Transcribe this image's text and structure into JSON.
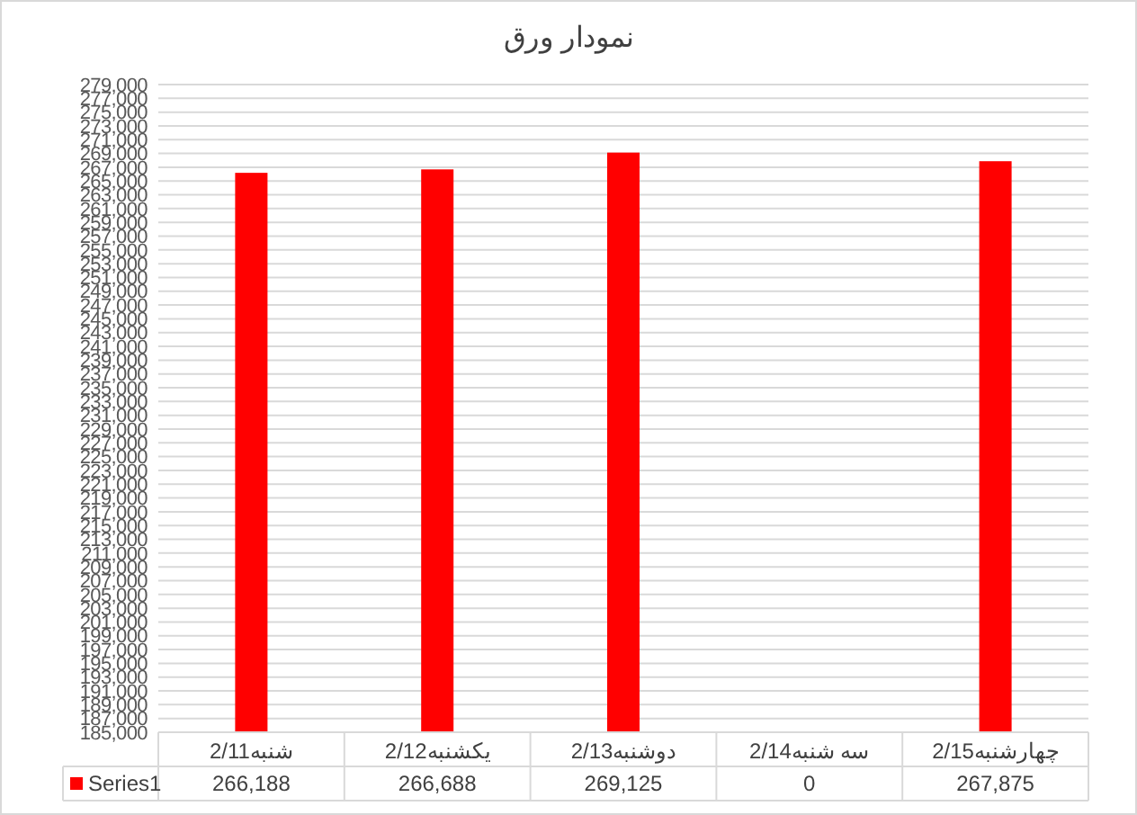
{
  "chart_data": {
    "type": "bar",
    "title": "نمودار ورق",
    "categories": [
      "شنبه2/11",
      "یکشنبه2/12",
      "دوشنبه2/13",
      "سه شنبه2/14",
      "چهارشنبه2/15"
    ],
    "series": [
      {
        "name": "Series1",
        "color": "#ff0000",
        "values": [
          266188,
          266688,
          269125,
          null,
          267875
        ],
        "value_labels": [
          "266,188",
          "266,688",
          "269,125",
          "0",
          "267,875"
        ]
      }
    ],
    "ylim": [
      185000,
      279000
    ],
    "yticks": [
      {
        "value": 185000,
        "label": "185,000"
      },
      {
        "value": 187000,
        "label": "187,000"
      },
      {
        "value": 189000,
        "label": "189,000"
      },
      {
        "value": 191000,
        "label": "191,000"
      },
      {
        "value": 193000,
        "label": "193,000"
      },
      {
        "value": 195000,
        "label": "195,000"
      },
      {
        "value": 197000,
        "label": "197,000"
      },
      {
        "value": 199000,
        "label": "199,000"
      },
      {
        "value": 201000,
        "label": "201,000"
      },
      {
        "value": 203000,
        "label": "203,000"
      },
      {
        "value": 205000,
        "label": "205,000"
      },
      {
        "value": 207000,
        "label": "207,000"
      },
      {
        "value": 209000,
        "label": "209,000"
      },
      {
        "value": 211000,
        "label": "211,000"
      },
      {
        "value": 213000,
        "label": "213,000"
      },
      {
        "value": 215000,
        "label": "215,000"
      },
      {
        "value": 217000,
        "label": "217,000"
      },
      {
        "value": 219000,
        "label": "219,000"
      },
      {
        "value": 221000,
        "label": "221,000"
      },
      {
        "value": 223000,
        "label": "223,000"
      },
      {
        "value": 225000,
        "label": "225,000"
      },
      {
        "value": 227000,
        "label": "227,000"
      },
      {
        "value": 229000,
        "label": "229,000"
      },
      {
        "value": 231000,
        "label": "231,000"
      },
      {
        "value": 233000,
        "label": "233,000"
      },
      {
        "value": 235000,
        "label": "235,000"
      },
      {
        "value": 237000,
        "label": "237,000"
      },
      {
        "value": 239000,
        "label": "239,000"
      },
      {
        "value": 241000,
        "label": "241,000"
      },
      {
        "value": 243000,
        "label": "243,000"
      },
      {
        "value": 245000,
        "label": "245,000"
      },
      {
        "value": 247000,
        "label": "247,000"
      },
      {
        "value": 249000,
        "label": "249,000"
      },
      {
        "value": 251000,
        "label": "251,000"
      },
      {
        "value": 253000,
        "label": "253,000"
      },
      {
        "value": 255000,
        "label": "255,000"
      },
      {
        "value": 257000,
        "label": "257,000"
      },
      {
        "value": 259000,
        "label": "259,000"
      },
      {
        "value": 261000,
        "label": "261,000"
      },
      {
        "value": 263000,
        "label": "263,000"
      },
      {
        "value": 265000,
        "label": "265,000"
      },
      {
        "value": 267000,
        "label": "267,000"
      },
      {
        "value": 269000,
        "label": "269,000"
      },
      {
        "value": 271000,
        "label": "271,000"
      },
      {
        "value": 273000,
        "label": "273,000"
      },
      {
        "value": 275000,
        "label": "275,000"
      },
      {
        "value": 277000,
        "label": "277,000"
      },
      {
        "value": 279000,
        "label": "279,000"
      }
    ],
    "grid": "y"
  }
}
